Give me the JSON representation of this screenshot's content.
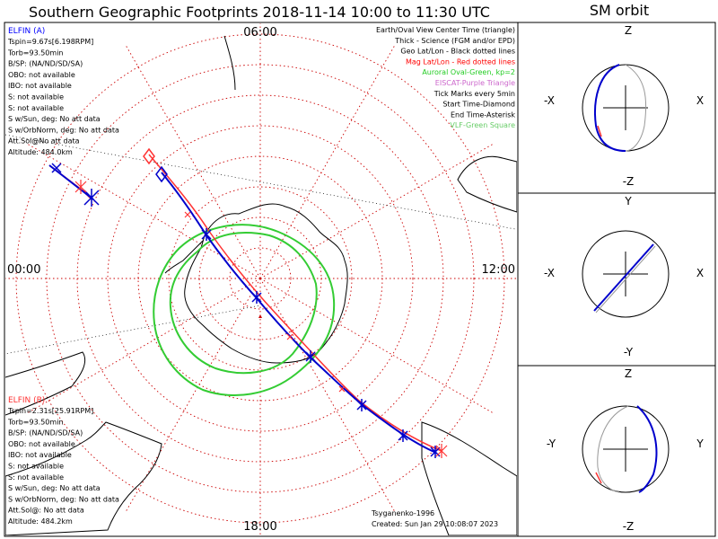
{
  "title": "Southern Geographic Footprints 2018-11-14 10:00 to 11:30 UTC",
  "orbit_title": "SM orbit",
  "map": {
    "mlt_labels": {
      "top": "06:00",
      "left": "00:00",
      "right": "12:00",
      "bottom": "18:00"
    },
    "legend": [
      {
        "text": "Earth/Oval View Center Time (triangle)",
        "color": "#000000"
      },
      {
        "text": "Thick - Science (FGM and/or EPD)",
        "color": "#000000"
      },
      {
        "text": "Geo Lat/Lon - Black dotted lines",
        "color": "#000000"
      },
      {
        "text": "Mag Lat/Lon - Red dotted lines",
        "color": "#ff0000"
      },
      {
        "text": "Auroral Oval-Green, kp=2",
        "color": "#22cc22"
      },
      {
        "text": "EISCAT-Purple Triangle",
        "color": "#cc66cc"
      },
      {
        "text": "Tick Marks every 5min",
        "color": "#000000"
      },
      {
        "text": "Start Time-Diamond",
        "color": "#000000"
      },
      {
        "text": "End Time-Asterisk",
        "color": "#000000"
      },
      {
        "text": "VLF-Green Square",
        "color": "#66cc66"
      }
    ],
    "elfin_a": {
      "name": "ELFIN (A)",
      "lines": [
        "Tspin=9.67s[6.198RPM]",
        "Torb=93.50min",
        "B/SP: (NA/ND/SD/SA)",
        "OBO: not available",
        "IBO: not available",
        "S: not available",
        "S: not available",
        "S w/Sun, deg: No att data",
        "S w/OrbNorm, deg: No att data",
        "Att.Sol@No att data",
        "Altitude: 484.0km"
      ]
    },
    "elfin_b": {
      "name": "ELFIN (B)",
      "lines": [
        "Tspin=2.31s[25.91RPM]",
        "Torb=93.50min",
        "B/SP: (NA/ND/SD/SA)",
        "OBO: not available",
        "IBO: not available",
        "S: not available",
        "S: not available",
        "S w/Sun, deg: No att data",
        "S w/OrbNorm, deg: No att data",
        "Att.Sol@: No att data",
        "Altitude: 484.2km"
      ]
    },
    "credit": "Tsyganenko-1996",
    "created": "Created: Sun Jan 29 10:08:07 2023"
  },
  "orbit_panels": [
    {
      "top": "Z",
      "bottom": "-Z",
      "left": "-X",
      "right": "X"
    },
    {
      "top": "Y",
      "bottom": "-Y",
      "left": "-X",
      "right": "X"
    },
    {
      "top": "Z",
      "bottom": "-Z",
      "left": "-Y",
      "right": "Y"
    }
  ],
  "colors": {
    "elfin_a": "#0000cc",
    "elfin_b": "#ff3333",
    "oval": "#33cc33",
    "grid": "#cc0000",
    "title_a": "#0000ff",
    "title_b": "#ff3333"
  }
}
